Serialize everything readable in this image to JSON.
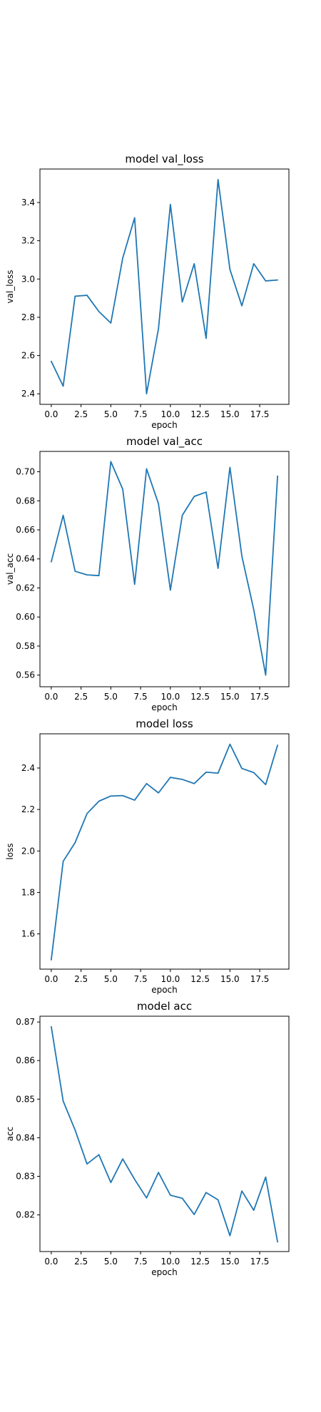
{
  "chart_data": [
    {
      "type": "line",
      "title": "model val_loss",
      "xlabel": "epoch",
      "ylabel": "val_loss",
      "xlim": [
        -0.95,
        19.95
      ],
      "ylim": [
        2.345,
        3.575
      ],
      "xticks": [
        0,
        2.5,
        5,
        7.5,
        10,
        12.5,
        15,
        17.5
      ],
      "xtick_labels": [
        "0.0",
        "2.5",
        "5.0",
        "7.5",
        "10.0",
        "12.5",
        "15.0",
        "17.5"
      ],
      "yticks": [
        2.4,
        2.6,
        2.8,
        3.0,
        3.2,
        3.4
      ],
      "ytick_labels": [
        "2.4",
        "2.6",
        "2.8",
        "3.0",
        "3.2",
        "3.4"
      ],
      "grid": false,
      "series": [
        {
          "color": "#1f77b4",
          "x": [
            0,
            1,
            2,
            3,
            4,
            5,
            6,
            7,
            8,
            9,
            10,
            11,
            12,
            13,
            14,
            15,
            16,
            17,
            18,
            19
          ],
          "values": [
            2.57,
            2.44,
            2.91,
            2.915,
            2.83,
            2.77,
            3.11,
            3.32,
            2.4,
            2.74,
            3.39,
            2.88,
            3.08,
            2.69,
            3.52,
            3.05,
            2.86,
            3.08,
            2.99,
            2.995
          ]
        }
      ]
    },
    {
      "type": "line",
      "title": "model val_acc",
      "xlabel": "epoch",
      "ylabel": "val_acc",
      "xlim": [
        -0.95,
        19.95
      ],
      "ylim": [
        0.552,
        0.714
      ],
      "xticks": [
        0,
        2.5,
        5,
        7.5,
        10,
        12.5,
        15,
        17.5
      ],
      "xtick_labels": [
        "0.0",
        "2.5",
        "5.0",
        "7.5",
        "10.0",
        "12.5",
        "15.0",
        "17.5"
      ],
      "yticks": [
        0.56,
        0.58,
        0.6,
        0.62,
        0.64,
        0.66,
        0.68,
        0.7
      ],
      "ytick_labels": [
        "0.56",
        "0.58",
        "0.60",
        "0.62",
        "0.64",
        "0.66",
        "0.68",
        "0.70"
      ],
      "grid": false,
      "series": [
        {
          "color": "#1f77b4",
          "x": [
            0,
            1,
            2,
            3,
            4,
            5,
            6,
            7,
            8,
            9,
            10,
            11,
            12,
            13,
            14,
            15,
            16,
            17,
            18,
            19
          ],
          "values": [
            0.638,
            0.67,
            0.6315,
            0.629,
            0.6285,
            0.707,
            0.688,
            0.6225,
            0.702,
            0.678,
            0.6185,
            0.67,
            0.683,
            0.686,
            0.6335,
            0.703,
            0.642,
            0.605,
            0.56,
            0.697
          ]
        }
      ]
    },
    {
      "type": "line",
      "title": "model loss",
      "xlabel": "epoch",
      "ylabel": "loss",
      "xlim": [
        -0.95,
        19.95
      ],
      "ylim": [
        1.43,
        2.565
      ],
      "xticks": [
        0,
        2.5,
        5,
        7.5,
        10,
        12.5,
        15,
        17.5
      ],
      "xtick_labels": [
        "0.0",
        "2.5",
        "5.0",
        "7.5",
        "10.0",
        "12.5",
        "15.0",
        "17.5"
      ],
      "yticks": [
        1.6,
        1.8,
        2.0,
        2.2,
        2.4
      ],
      "ytick_labels": [
        "1.6",
        "1.8",
        "2.0",
        "2.2",
        "2.4"
      ],
      "grid": false,
      "series": [
        {
          "color": "#1f77b4",
          "x": [
            0,
            1,
            2,
            3,
            4,
            5,
            6,
            7,
            8,
            9,
            10,
            11,
            12,
            13,
            14,
            15,
            16,
            17,
            18,
            19
          ],
          "values": [
            1.475,
            1.95,
            2.04,
            2.18,
            2.24,
            2.265,
            2.267,
            2.245,
            2.325,
            2.28,
            2.355,
            2.345,
            2.325,
            2.38,
            2.375,
            2.515,
            2.398,
            2.378,
            2.32,
            2.51
          ]
        }
      ]
    },
    {
      "type": "line",
      "title": "model acc",
      "xlabel": "epoch",
      "ylabel": "acc",
      "xlim": [
        -0.95,
        19.95
      ],
      "ylim": [
        0.8105,
        0.8715
      ],
      "xticks": [
        0,
        2.5,
        5,
        7.5,
        10,
        12.5,
        15,
        17.5
      ],
      "xtick_labels": [
        "0.0",
        "2.5",
        "5.0",
        "7.5",
        "10.0",
        "12.5",
        "15.0",
        "17.5"
      ],
      "yticks": [
        0.82,
        0.83,
        0.84,
        0.85,
        0.86,
        0.87
      ],
      "ytick_labels": [
        "0.82",
        "0.83",
        "0.84",
        "0.85",
        "0.86",
        "0.87"
      ],
      "grid": false,
      "series": [
        {
          "color": "#1f77b4",
          "x": [
            0,
            1,
            2,
            3,
            4,
            5,
            6,
            7,
            8,
            9,
            10,
            11,
            12,
            13,
            14,
            15,
            16,
            17,
            18,
            19
          ],
          "values": [
            0.8688,
            0.8495,
            0.842,
            0.8332,
            0.8356,
            0.8284,
            0.8345,
            0.8292,
            0.8244,
            0.831,
            0.8251,
            0.8243,
            0.8201,
            0.8258,
            0.8239,
            0.8146,
            0.8262,
            0.8212,
            0.8298,
            0.813
          ]
        }
      ]
    }
  ]
}
